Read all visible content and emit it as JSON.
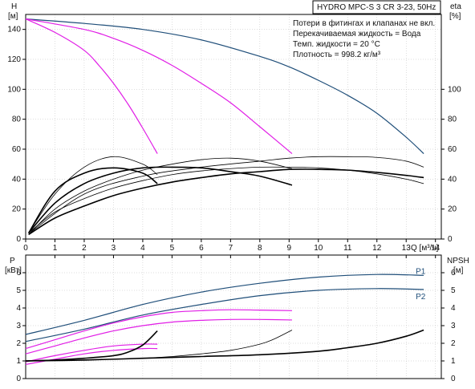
{
  "chart_data": [
    {
      "type": "line",
      "title": "HYDRO MPC-S 3 CR 3-23, 50Hz",
      "notes": [
        "Потери в фитингах и клапанах не вкл.",
        "Перекачиваемая жидкость = Вода",
        "Темп. жидкости = 20 °C",
        "Плотность = 998.2 кг/м³"
      ],
      "y_left_label": [
        "H",
        "[м]"
      ],
      "y_right_label": [
        "eta",
        "[%]"
      ],
      "x_label": "Q [м³/ч]",
      "xlim": [
        0,
        14.2
      ],
      "ylim": [
        0,
        150
      ],
      "x_ticks": [
        "0",
        "1",
        "2",
        "3",
        "4",
        "5",
        "6",
        "7",
        "8",
        "9",
        "10",
        "11",
        "12",
        "13",
        "14"
      ],
      "y_left_ticks": [
        "0",
        "20",
        "40",
        "60",
        "80",
        "100",
        "120",
        "140"
      ],
      "y_right_ticks": [
        "0",
        "20",
        "40",
        "60",
        "80",
        "100"
      ],
      "series": [
        {
          "role": "head",
          "color": "#1f4e79",
          "x": [
            0,
            2,
            4,
            6,
            8,
            9,
            10,
            11,
            12,
            13,
            13.6
          ],
          "y": [
            147,
            144,
            140,
            133,
            122,
            115,
            106,
            96,
            84,
            68,
            57
          ]
        },
        {
          "role": "head",
          "color": "#e11ee6",
          "x": [
            0,
            2,
            3,
            4,
            5,
            6,
            7,
            8,
            9.1
          ],
          "y": [
            147,
            140,
            134,
            126,
            116,
            104,
            91,
            75,
            57
          ]
        },
        {
          "role": "head",
          "color": "#e11ee6",
          "x": [
            0,
            1,
            2,
            2.5,
            3,
            3.5,
            4,
            4.5
          ],
          "y": [
            147,
            138,
            126,
            116,
            104,
            90,
            74,
            57
          ]
        },
        {
          "role": "efficiency",
          "color": "#000000",
          "x": [
            0.1,
            1,
            2,
            3,
            4,
            5,
            6,
            7,
            8,
            9,
            10,
            11,
            12,
            13,
            13.6
          ],
          "y": [
            4,
            18,
            27,
            34,
            39,
            43,
            45.5,
            47,
            48,
            48,
            47.5,
            46,
            43.5,
            40,
            37
          ]
        },
        {
          "role": "efficiency",
          "color": "#000000",
          "x": [
            0.1,
            1,
            2,
            3,
            4,
            5,
            6,
            7,
            8,
            9,
            10,
            11,
            12,
            13,
            13.6
          ],
          "y": [
            3,
            14,
            22,
            29,
            34,
            38,
            41,
            43.5,
            45,
            46.5,
            46.5,
            46,
            44.5,
            42.5,
            41
          ]
        },
        {
          "role": "efficiency",
          "color": "#000000",
          "x": [
            0.2,
            2,
            4,
            6,
            8,
            9,
            10,
            11,
            12,
            13,
            13.6
          ],
          "y": [
            5,
            30,
            42,
            48,
            52,
            54,
            55,
            55,
            54.5,
            52,
            48
          ]
        },
        {
          "role": "efficiency",
          "color": "#000000",
          "x": [
            0.1,
            1,
            2,
            3,
            4,
            5,
            6,
            7,
            8,
            9.1
          ],
          "y": [
            4,
            24,
            37,
            44,
            47.5,
            48,
            47.5,
            45,
            42,
            36
          ]
        },
        {
          "role": "efficiency",
          "color": "#000000",
          "x": [
            0.1,
            1,
            2,
            3,
            4,
            5,
            6,
            7,
            8,
            9.1
          ],
          "y": [
            3,
            20,
            32,
            40,
            46,
            50,
            53,
            54,
            52,
            47
          ]
        },
        {
          "role": "efficiency",
          "color": "#000000",
          "x": [
            0.1,
            1,
            2,
            3,
            4,
            4.5
          ],
          "y": [
            4,
            32,
            44,
            47.5,
            44,
            37
          ]
        },
        {
          "role": "efficiency",
          "color": "#000000",
          "x": [
            0.1,
            1,
            2,
            3,
            4,
            4.5
          ],
          "y": [
            4,
            30,
            48,
            55,
            50,
            43
          ]
        }
      ]
    },
    {
      "type": "line",
      "y_left_label": [
        "P",
        "[кВт]"
      ],
      "y_right_label": [
        "NPSH",
        "[м]"
      ],
      "xlim": [
        0,
        14.2
      ],
      "ylim": [
        0,
        7
      ],
      "y_left_ticks": [
        "0",
        "1",
        "2",
        "3",
        "4",
        "5",
        "6"
      ],
      "y_right_ticks": [
        "0",
        "1",
        "2",
        "3",
        "4",
        "5",
        "6"
      ],
      "series": [
        {
          "name": "P1",
          "color": "#1f4e79",
          "x": [
            0,
            2,
            4,
            6,
            8,
            10,
            12,
            13.6
          ],
          "y": [
            2.5,
            3.3,
            4.2,
            4.9,
            5.4,
            5.75,
            5.9,
            5.85
          ]
        },
        {
          "name": "P2",
          "color": "#1f4e79",
          "x": [
            0,
            2,
            4,
            6,
            8,
            10,
            12,
            13.6
          ],
          "y": [
            2.1,
            2.8,
            3.6,
            4.2,
            4.7,
            5.0,
            5.1,
            5.05
          ]
        },
        {
          "role": "P1",
          "color": "#e11ee6",
          "x": [
            0,
            1,
            2,
            3,
            4,
            5,
            6,
            7,
            8,
            9.1
          ],
          "y": [
            1.7,
            2.2,
            2.7,
            3.15,
            3.5,
            3.75,
            3.85,
            3.9,
            3.88,
            3.85
          ]
        },
        {
          "role": "P2",
          "color": "#e11ee6",
          "x": [
            0,
            1,
            2,
            3,
            4,
            5,
            6,
            7,
            8,
            9.1
          ],
          "y": [
            1.4,
            1.85,
            2.3,
            2.7,
            3.0,
            3.2,
            3.3,
            3.35,
            3.35,
            3.32
          ]
        },
        {
          "role": "P1",
          "color": "#e11ee6",
          "x": [
            0,
            1,
            2,
            3,
            4,
            4.5
          ],
          "y": [
            0.95,
            1.3,
            1.6,
            1.85,
            1.95,
            1.95
          ]
        },
        {
          "role": "P2",
          "color": "#e11ee6",
          "x": [
            0,
            1,
            2,
            3,
            4,
            4.5
          ],
          "y": [
            0.8,
            1.1,
            1.4,
            1.6,
            1.7,
            1.7
          ]
        },
        {
          "role": "NPSH",
          "color": "#000000",
          "x": [
            0,
            2,
            4,
            6,
            8,
            10,
            11,
            12,
            13,
            13.6
          ],
          "y": [
            1.0,
            1.05,
            1.15,
            1.25,
            1.35,
            1.55,
            1.75,
            2.0,
            2.4,
            2.75
          ]
        },
        {
          "role": "NPSH",
          "color": "#000000",
          "x": [
            0,
            2,
            4,
            5,
            6,
            7,
            8,
            8.5,
            9.1
          ],
          "y": [
            1.0,
            1.05,
            1.15,
            1.25,
            1.4,
            1.6,
            1.95,
            2.25,
            2.75
          ]
        },
        {
          "role": "NPSH",
          "color": "#000000",
          "x": [
            0,
            1,
            2,
            3,
            3.5,
            4,
            4.5
          ],
          "y": [
            1.0,
            1.05,
            1.15,
            1.3,
            1.5,
            1.9,
            2.7
          ]
        }
      ]
    }
  ]
}
